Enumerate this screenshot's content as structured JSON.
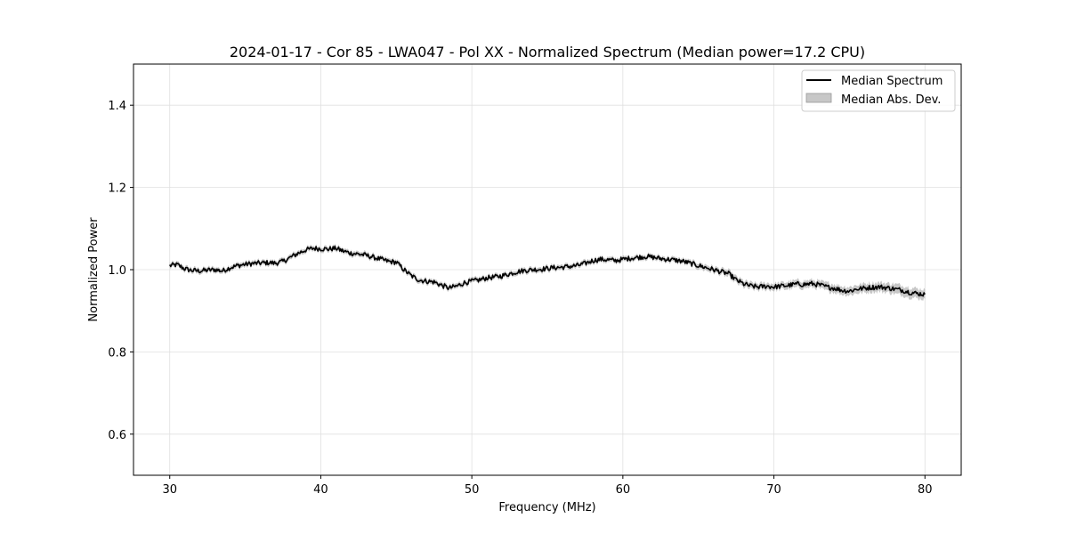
{
  "chart_data": {
    "type": "line",
    "title": "2024-01-17 - Cor 85 - LWA047 - Pol XX - Normalized Spectrum (Median power=17.2 CPU)",
    "xlabel": "Frequency (MHz)",
    "ylabel": "Normalized Power",
    "xlim": [
      27.6,
      82.4
    ],
    "ylim": [
      0.5,
      1.5
    ],
    "xticks": [
      30,
      40,
      50,
      60,
      70,
      80
    ],
    "yticks": [
      0.6,
      0.8,
      1.0,
      1.2,
      1.4
    ],
    "xtick_labels": [
      "30",
      "40",
      "50",
      "60",
      "70",
      "80"
    ],
    "ytick_labels": [
      "0.6",
      "0.8",
      "1.0",
      "1.2",
      "1.4"
    ],
    "grid": true,
    "legend_position": "top-right",
    "legend": [
      "Median Spectrum",
      "Median Abs. Dev."
    ],
    "colors": {
      "line": "#000000",
      "band": "#a9a9a9",
      "grid": "#e0e0e0"
    },
    "series": [
      {
        "name": "Median Spectrum",
        "x": [
          30,
          30.5,
          31,
          31.5,
          32,
          32.5,
          33,
          33.5,
          34,
          34.5,
          35,
          35.5,
          36,
          36.5,
          37,
          37.5,
          38,
          38.5,
          39,
          39.5,
          40,
          40.5,
          41,
          41.5,
          42,
          42.5,
          43,
          43.5,
          44,
          44.5,
          45,
          45.5,
          46,
          46.5,
          47,
          47.5,
          48,
          48.5,
          49,
          49.5,
          50,
          50.5,
          51,
          51.5,
          52,
          52.5,
          53,
          53.5,
          54,
          54.5,
          55,
          55.5,
          56,
          56.5,
          57,
          57.5,
          58,
          58.5,
          59,
          59.5,
          60,
          60.5,
          61,
          61.5,
          62,
          62.5,
          63,
          63.5,
          64,
          64.5,
          65,
          65.5,
          66,
          66.5,
          67,
          67.5,
          68,
          68.5,
          69,
          69.5,
          70,
          70.5,
          71,
          71.5,
          72,
          72.5,
          73,
          73.5,
          74,
          74.5,
          75,
          75.5,
          76,
          76.5,
          77,
          77.5,
          78,
          78.5,
          79,
          79.5,
          80
        ],
        "y": [
          1.01,
          1.012,
          1.002,
          0.998,
          0.997,
          0.999,
          1.0,
          0.997,
          1.005,
          1.01,
          1.013,
          1.015,
          1.016,
          1.017,
          1.016,
          1.02,
          1.03,
          1.04,
          1.048,
          1.052,
          1.051,
          1.05,
          1.052,
          1.045,
          1.04,
          1.038,
          1.035,
          1.03,
          1.025,
          1.02,
          1.018,
          1.0,
          0.985,
          0.975,
          0.972,
          0.97,
          0.962,
          0.955,
          0.96,
          0.968,
          0.972,
          0.975,
          0.98,
          0.982,
          0.985,
          0.99,
          0.995,
          0.998,
          1.0,
          1.001,
          1.003,
          1.005,
          1.006,
          1.008,
          1.01,
          1.015,
          1.022,
          1.025,
          1.024,
          1.022,
          1.025,
          1.028,
          1.03,
          1.032,
          1.03,
          1.027,
          1.025,
          1.023,
          1.02,
          1.015,
          1.01,
          1.005,
          1.0,
          0.995,
          0.99,
          0.975,
          0.965,
          0.96,
          0.958,
          0.96,
          0.958,
          0.96,
          0.962,
          0.965,
          0.964,
          0.966,
          0.963,
          0.958,
          0.955,
          0.95,
          0.948,
          0.953,
          0.955,
          0.957,
          0.958,
          0.956,
          0.953,
          0.95,
          0.945,
          0.942,
          0.94
        ]
      },
      {
        "name": "Median Abs. Dev.",
        "spread": [
          0.006,
          0.006,
          0.006,
          0.006,
          0.006,
          0.006,
          0.006,
          0.006,
          0.006,
          0.006,
          0.006,
          0.006,
          0.006,
          0.006,
          0.006,
          0.006,
          0.006,
          0.006,
          0.006,
          0.006,
          0.006,
          0.006,
          0.006,
          0.006,
          0.006,
          0.006,
          0.006,
          0.006,
          0.006,
          0.006,
          0.006,
          0.006,
          0.006,
          0.006,
          0.006,
          0.006,
          0.006,
          0.006,
          0.006,
          0.006,
          0.006,
          0.006,
          0.006,
          0.006,
          0.006,
          0.006,
          0.006,
          0.006,
          0.006,
          0.006,
          0.006,
          0.006,
          0.006,
          0.006,
          0.006,
          0.006,
          0.006,
          0.006,
          0.006,
          0.006,
          0.006,
          0.006,
          0.006,
          0.006,
          0.006,
          0.006,
          0.006,
          0.006,
          0.006,
          0.006,
          0.007,
          0.007,
          0.007,
          0.007,
          0.008,
          0.008,
          0.008,
          0.008,
          0.008,
          0.008,
          0.008,
          0.008,
          0.009,
          0.009,
          0.009,
          0.009,
          0.009,
          0.01,
          0.01,
          0.01,
          0.01,
          0.01,
          0.011,
          0.011,
          0.011,
          0.011,
          0.012,
          0.012,
          0.012,
          0.012,
          0.012
        ]
      }
    ]
  }
}
